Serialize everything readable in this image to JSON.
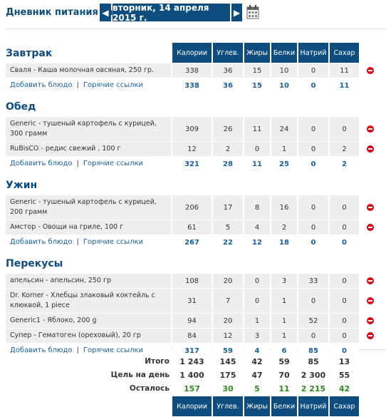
{
  "header": {
    "title": "Дневник питания за:",
    "date": "вторник, 14 апреля 2015 г."
  },
  "columns": [
    "Калории",
    "Углев.",
    "Жиры",
    "Белки",
    "Натрий",
    "Сахар"
  ],
  "labels": {
    "add_food": "Добавить блюдо",
    "hot_links": "Горячие ссылки"
  },
  "meals": [
    {
      "title": "Завтрак",
      "items": [
        {
          "name": "Сваля - Каша молочная овсяная, 250 гр.",
          "values": [
            338,
            36,
            15,
            10,
            0,
            11
          ]
        }
      ],
      "totals": [
        338,
        36,
        15,
        10,
        0,
        11
      ]
    },
    {
      "title": "Обед",
      "items": [
        {
          "name": "Generic - тушеный картофель с курицей, 300 грамм",
          "values": [
            309,
            26,
            11,
            24,
            0,
            0
          ]
        },
        {
          "name": "RuBisCO - редис свежий , 100 г",
          "values": [
            12,
            2,
            0,
            1,
            0,
            2
          ]
        }
      ],
      "totals": [
        321,
        28,
        11,
        25,
        0,
        2
      ]
    },
    {
      "title": "Ужин",
      "items": [
        {
          "name": "Generic - тушеный картофель с курицей, 200 грамм",
          "values": [
            206,
            17,
            8,
            16,
            0,
            0
          ]
        },
        {
          "name": "Амстор - Овощи на гриле, 100 г",
          "values": [
            61,
            5,
            4,
            2,
            0,
            0
          ]
        }
      ],
      "totals": [
        267,
        22,
        12,
        18,
        0,
        0
      ]
    },
    {
      "title": "Перекусы",
      "items": [
        {
          "name": "апельсин - апельсин, 250 гр",
          "values": [
            108,
            20,
            0,
            3,
            33,
            0
          ]
        },
        {
          "name": "Dr. Korner - Хлебцы злаковый коктейль с клюквой, 1 piece",
          "values": [
            31,
            7,
            0,
            1,
            0,
            0
          ]
        },
        {
          "name": "Generic1 - Яблоко, 200 g",
          "values": [
            94,
            20,
            1,
            1,
            52,
            0
          ]
        },
        {
          "name": "Супер - Гематоген (ореховый), 20 гр",
          "values": [
            84,
            12,
            3,
            1,
            0,
            0
          ]
        }
      ],
      "totals": [
        317,
        59,
        4,
        6,
        85,
        0
      ]
    }
  ],
  "summary": [
    {
      "label": "Итого",
      "values": [
        "1 243",
        145,
        42,
        59,
        85,
        13
      ]
    },
    {
      "label": "Цель на день",
      "values": [
        "1 400",
        175,
        47,
        70,
        "2 300",
        55
      ]
    },
    {
      "label": "Осталось",
      "values": [
        157,
        30,
        5,
        11,
        "2 215",
        42
      ]
    }
  ]
}
